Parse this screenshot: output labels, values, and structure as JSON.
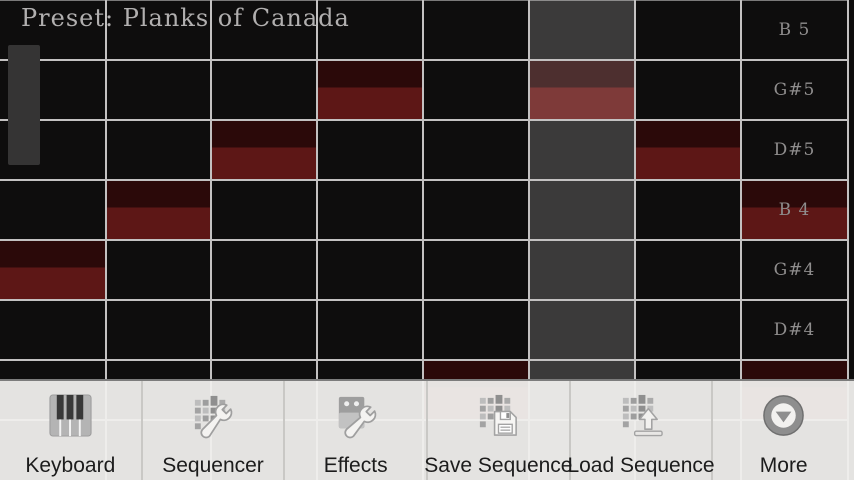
{
  "app": {
    "preset_title": "Preset: Planks of Canada"
  },
  "sequencer": {
    "num_steps": 8,
    "playhead_step": 5,
    "note_rows": [
      {
        "label": "B 5",
        "active_steps": []
      },
      {
        "label": "G#5",
        "active_steps": [
          3,
          5
        ]
      },
      {
        "label": "D#5",
        "active_steps": [
          2,
          6
        ]
      },
      {
        "label": "B 4",
        "active_steps": [
          1,
          7
        ]
      },
      {
        "label": "G#4",
        "active_steps": [
          0
        ]
      },
      {
        "label": "D#4",
        "active_steps": []
      },
      {
        "label": "",
        "active_steps": [
          4,
          7
        ]
      },
      {
        "label": "",
        "active_steps": []
      }
    ],
    "scroll_indicator": "vertical-left"
  },
  "toolbar": {
    "items": [
      {
        "label": "Keyboard",
        "icon": "keyboard-icon"
      },
      {
        "label": "Sequencer",
        "icon": "sequencer-icon"
      },
      {
        "label": "Effects",
        "icon": "effects-icon"
      },
      {
        "label": "Save Sequence",
        "icon": "save-sequence-icon"
      },
      {
        "label": "Load Sequence",
        "icon": "load-sequence-icon"
      },
      {
        "label": "More",
        "icon": "more-icon"
      }
    ]
  },
  "colors": {
    "background": "#0e0d0d",
    "grid_line": "#c3c1c1",
    "note_dark": "#2b0909",
    "note_bright": "#5d1716",
    "playhead": "#3b3a3a",
    "playhead_note_dark": "#4d2f2f",
    "playhead_note_bright": "#7e3a39",
    "scrollbar": "#353434",
    "title_text": "#b1afaf",
    "label_text": "#8f8d8d",
    "toolbar_bg": "#f0efed",
    "toolbar_border": "#7c7c7c",
    "toolbar_separator": "#c9c8c5",
    "toolbar_text": "#1c1c1c"
  }
}
